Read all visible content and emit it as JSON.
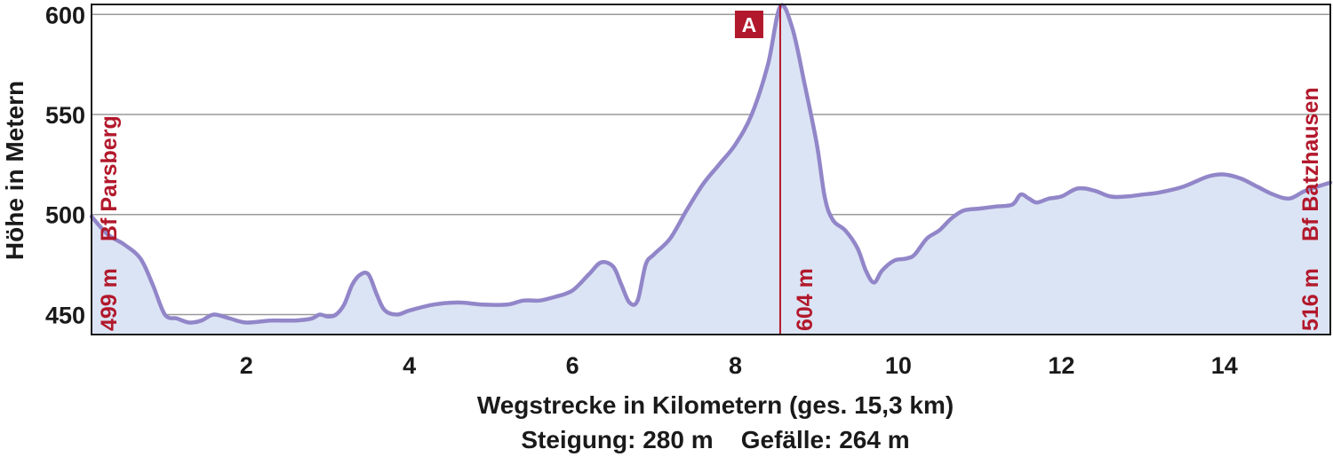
{
  "chart_data": {
    "type": "area",
    "xlabel": "Wegstrecke in Kilometern (ges. 15,3 km)",
    "ylabel": "Höhe in Metern",
    "stats": "Steigung: 280 m    Gefälle: 264 m",
    "xlim": [
      0.1,
      15.3
    ],
    "ylim": [
      440,
      605
    ],
    "x_ticks": [
      "2",
      "4",
      "6",
      "8",
      "10",
      "12",
      "14"
    ],
    "x_tick_values": [
      2,
      4,
      6,
      8,
      10,
      12,
      14
    ],
    "y_ticks": [
      "450",
      "500",
      "550",
      "600"
    ],
    "y_tick_values": [
      450,
      500,
      550,
      600
    ],
    "grid": "horizontal",
    "colors": {
      "line": "#9286c9",
      "fill": "#dbe4f4",
      "marker": "#b2182b",
      "text": "#1a1a1a"
    },
    "series": [
      {
        "x": [
          0.1,
          0.3,
          0.5,
          0.7,
          0.85,
          1.0,
          1.15,
          1.3,
          1.45,
          1.6,
          1.8,
          2.0,
          2.3,
          2.6,
          2.8,
          2.9,
          3.0,
          3.1,
          3.2,
          3.3,
          3.4,
          3.5,
          3.6,
          3.7,
          3.85,
          4.0,
          4.3,
          4.6,
          4.9,
          5.2,
          5.4,
          5.6,
          5.8,
          6.0,
          6.2,
          6.35,
          6.5,
          6.6,
          6.7,
          6.8,
          6.9,
          7.0,
          7.2,
          7.4,
          7.6,
          7.8,
          8.0,
          8.2,
          8.4,
          8.55,
          8.7,
          8.85,
          9.0,
          9.1,
          9.2,
          9.35,
          9.5,
          9.6,
          9.7,
          9.8,
          9.95,
          10.1,
          10.2,
          10.35,
          10.5,
          10.65,
          10.8,
          11.0,
          11.2,
          11.4,
          11.5,
          11.6,
          11.7,
          11.85,
          12.0,
          12.2,
          12.4,
          12.6,
          12.8,
          13.0,
          13.2,
          13.5,
          13.8,
          14.0,
          14.2,
          14.4,
          14.6,
          14.8,
          15.0,
          15.3
        ],
        "values": [
          499,
          490,
          485,
          478,
          465,
          450,
          448,
          446,
          447,
          450,
          448,
          446,
          447,
          447,
          448,
          450,
          449,
          450,
          455,
          465,
          470,
          470,
          460,
          452,
          450,
          452,
          455,
          456,
          455,
          455,
          457,
          457,
          459,
          462,
          470,
          476,
          474,
          465,
          456,
          457,
          475,
          480,
          488,
          502,
          515,
          525,
          535,
          550,
          575,
          604,
          593,
          565,
          535,
          508,
          497,
          492,
          483,
          472,
          466,
          472,
          477,
          478,
          480,
          488,
          492,
          498,
          502,
          503,
          504,
          505,
          510,
          508,
          506,
          508,
          509,
          513,
          512,
          509,
          509,
          510,
          511,
          514,
          519,
          520,
          518,
          514,
          510,
          508,
          512,
          516
        ]
      }
    ],
    "annotations": [
      {
        "x": 0.1,
        "value": 499,
        "label": "499 m",
        "name": "Bf Parsberg"
      },
      {
        "x": 8.55,
        "value": 604,
        "label": "604 m",
        "marker": "A"
      },
      {
        "x": 15.3,
        "value": 516,
        "label": "516 m",
        "name": "Bf Batzhausen"
      }
    ]
  }
}
